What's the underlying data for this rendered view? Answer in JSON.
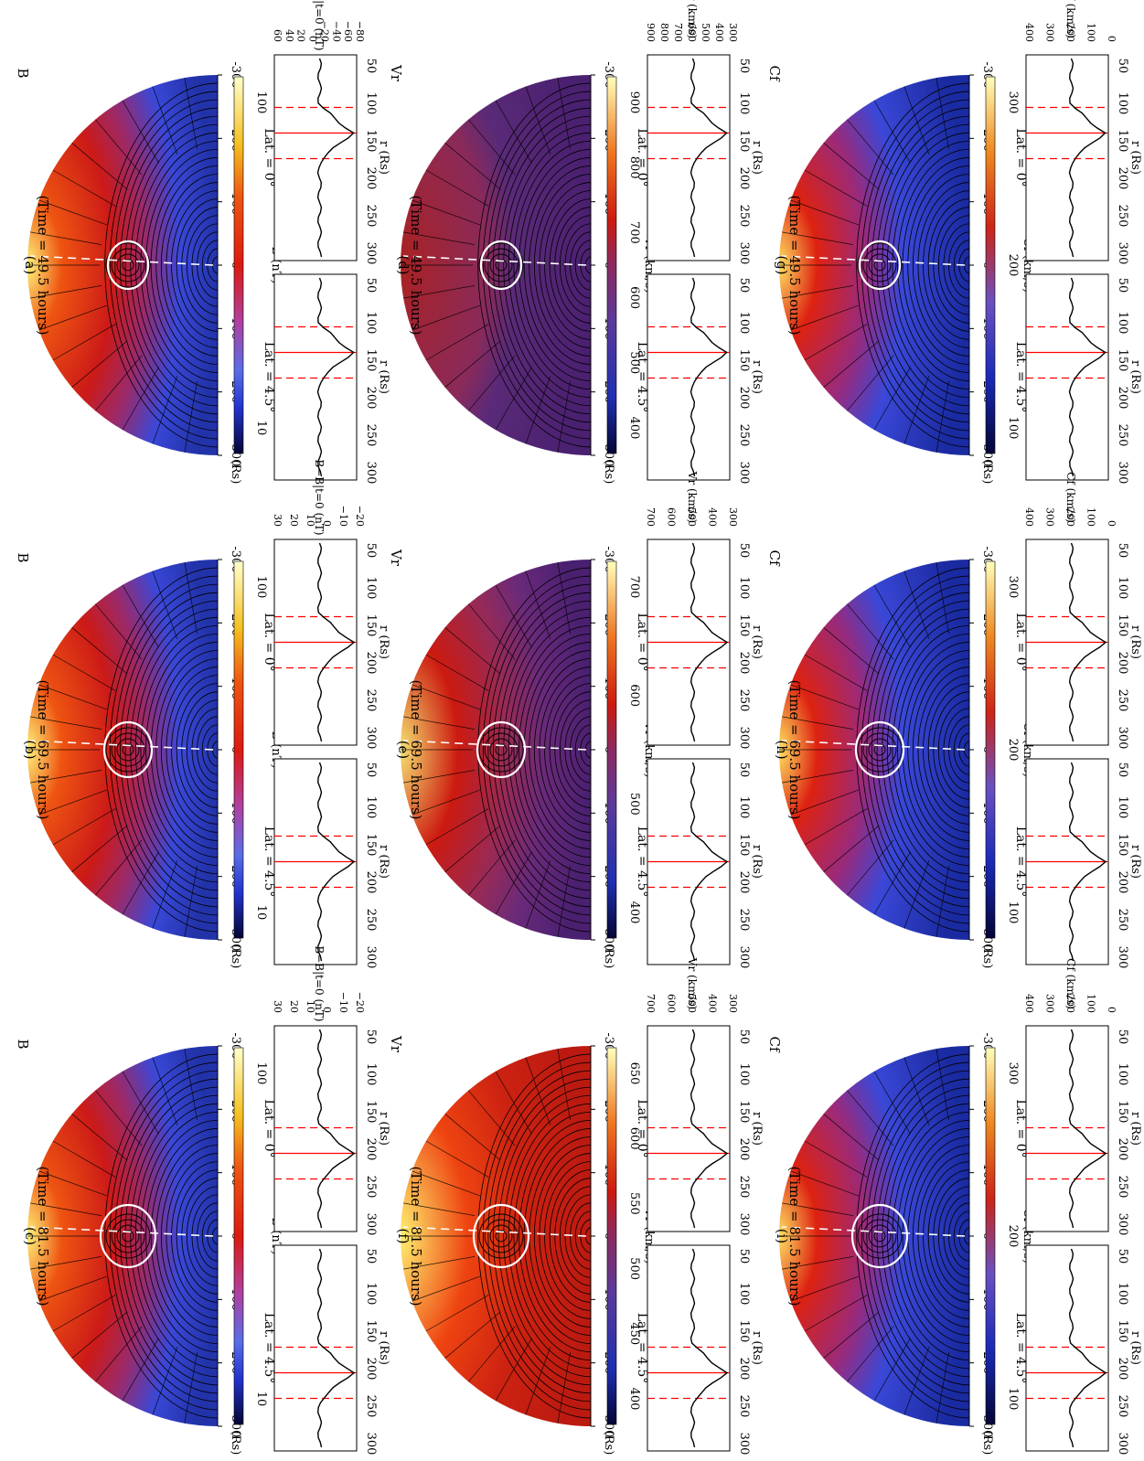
{
  "figure": {
    "tick_labels": {
      "x_map": [
        "-300",
        "-200",
        "-100",
        "0",
        "100",
        "200",
        "300"
      ],
      "x_profile_left": [
        "50",
        "100",
        "150",
        "200",
        "250",
        "300"
      ],
      "x_profile_right": [
        "50",
        "100",
        "150",
        "200",
        "250",
        "300"
      ]
    },
    "rs_unit": "(Rs)",
    "r_label": "r (Rs)",
    "lat0_label": "Lat. = 0°",
    "lat45_label": "Lat. = 4.5°",
    "colors": {
      "contour_black": "#000000",
      "fluxrope_white": "#ffffff",
      "marker_red": "#ff0000",
      "map_low": "#0a0a4a",
      "map_mid": "#cc1111",
      "map_high": "#ffffaa"
    }
  },
  "columns": [
    {
      "variable": "B",
      "cbar_label": "B (nT)",
      "cbar_ticks": [
        "100",
        "10"
      ],
      "profile_ylabel": "B−B|t=0 (nT)",
      "panels": [
        {
          "letter": "(a)",
          "time": "(Time = 49.5 hours)",
          "yticks": [
            "60",
            "40",
            "20",
            "0",
            "−20",
            "−40",
            "−60",
            "−80"
          ]
        },
        {
          "letter": "(b)",
          "time": "(Time = 69.5 hours)",
          "yticks": [
            "30",
            "20",
            "10",
            "0",
            "−10",
            "−20"
          ]
        },
        {
          "letter": "(c)",
          "time": "(Time = 81.5 hours)",
          "yticks": [
            "30",
            "20",
            "10",
            "0",
            "−10",
            "−20"
          ]
        }
      ]
    },
    {
      "variable": "Vr",
      "cbar_label": "Vr (km/s)",
      "profile_ylabel": "Vr (km/s)",
      "panels": [
        {
          "letter": "(d)",
          "time": "(Time = 49.5 hours)",
          "cbar_ticks": [
            "900",
            "800",
            "700",
            "600",
            "500",
            "400"
          ],
          "yticks": [
            "900",
            "800",
            "700",
            "600",
            "500",
            "400",
            "300"
          ]
        },
        {
          "letter": "(e)",
          "time": "(Time = 69.5 hours)",
          "cbar_ticks": [
            "700",
            "600",
            "500",
            "400"
          ],
          "yticks": [
            "700",
            "600",
            "500",
            "400",
            "300"
          ]
        },
        {
          "letter": "(f)",
          "time": "(Time = 81.5 hours)",
          "cbar_ticks": [
            "650",
            "600",
            "550",
            "500",
            "450",
            "400"
          ],
          "yticks": [
            "700",
            "600",
            "500",
            "400",
            "300"
          ]
        }
      ]
    },
    {
      "variable": "Cf",
      "cbar_label": "Cf (km/s)",
      "cbar_ticks": [
        "300",
        "200",
        "100"
      ],
      "profile_ylabel": "Cf (km/s)",
      "panels": [
        {
          "letter": "(g)",
          "time": "(Time = 49.5 hours)",
          "yticks": [
            "400",
            "300",
            "200",
            "100",
            "0"
          ]
        },
        {
          "letter": "(h)",
          "time": "(Time = 69.5 hours)",
          "yticks": [
            "400",
            "300",
            "200",
            "100",
            "0"
          ]
        },
        {
          "letter": "(i)",
          "time": "(Time = 81.5 hours)",
          "yticks": [
            "400",
            "300",
            "200",
            "100",
            "0"
          ]
        }
      ]
    }
  ]
}
